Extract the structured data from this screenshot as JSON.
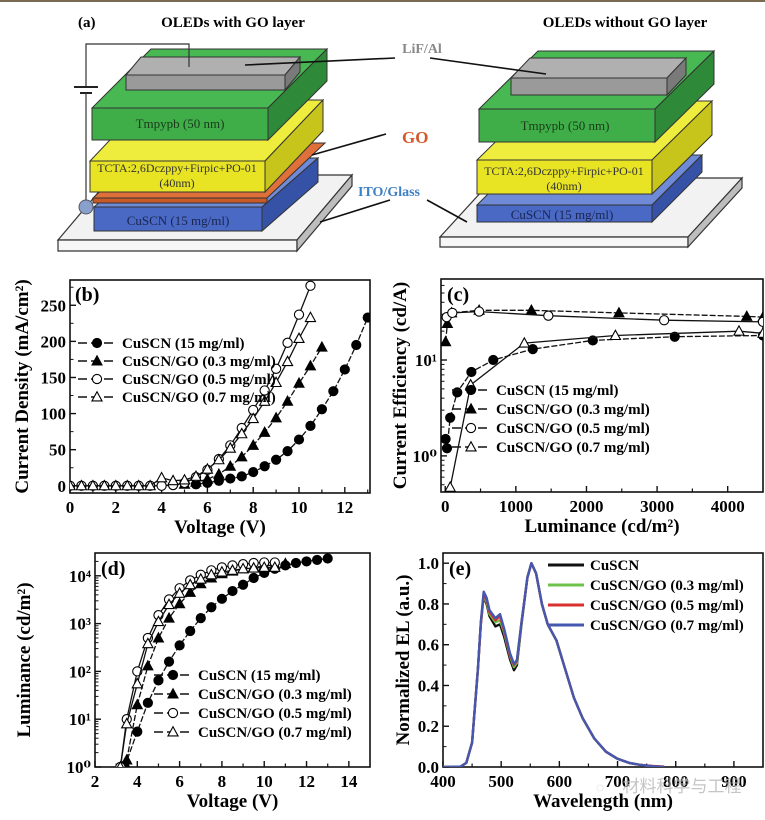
{
  "figure": {
    "panel_a": {
      "label": "(a)",
      "title_left": "OLEDs with GO layer",
      "title_right": "OLEDs without GO layer",
      "callouts": {
        "cathode": "LiF/Al",
        "go": "GO",
        "anode": "ITO/Glass"
      },
      "layers": {
        "etl": "Tmpypb (50 nm)",
        "eml_line1": "TCTA:2,6Dczppy+Firpic+PO-01",
        "eml_line2": "(40nm)",
        "htl": "CuSCN (15 mg/ml)"
      },
      "colors": {
        "cathode": "#9a9a9a",
        "etl": "#3fae49",
        "eml": "#e8e424",
        "go": "#e0703a",
        "htl": "#4a69c4",
        "glass": "#f2f2f2",
        "go_text": "#d2572a",
        "ito_text": "#3d7fc3"
      }
    },
    "watermark": "材料科学与工程"
  },
  "chart_data": [
    {
      "id": "b",
      "label": "(b)",
      "type": "scatter",
      "xlabel": "Voltage (V)",
      "ylabel": "Current Density (mA/cm²)",
      "xlim": [
        0,
        13.1
      ],
      "ylim": [
        -10,
        285
      ],
      "yscale": "linear",
      "xticks": [
        0,
        2,
        4,
        6,
        8,
        10,
        12
      ],
      "yticks": [
        0,
        50,
        100,
        150,
        200,
        250
      ],
      "legend_position": "left-middle",
      "series": [
        {
          "name": "CuSCN (15 mg/ml)",
          "marker": "circle-filled",
          "x": [
            5.5,
            6,
            6.5,
            7,
            7.5,
            8,
            8.5,
            9,
            9.5,
            10,
            10.5,
            11,
            11.5,
            12,
            12.5,
            13
          ],
          "y": [
            2,
            4,
            7,
            10,
            13,
            19,
            27,
            36,
            48,
            64,
            83,
            106,
            131,
            161,
            195,
            233
          ]
        },
        {
          "name": "CuSCN/GO (0.3 mg/ml)",
          "marker": "triangle-filled",
          "x": [
            5,
            5.5,
            6,
            6.5,
            7,
            7.5,
            8,
            8.5,
            9,
            9.5,
            10,
            10.5,
            11
          ],
          "y": [
            2,
            5,
            9,
            16,
            27,
            40,
            56,
            74,
            94,
            117,
            142,
            166,
            192
          ]
        },
        {
          "name": "CuSCN/GO (0.5 mg/ml)",
          "marker": "circle-open",
          "x": [
            0,
            0.5,
            1,
            1.5,
            2,
            2.5,
            3,
            3.5,
            4,
            4.5,
            5,
            5.5,
            6,
            6.5,
            7,
            7.5,
            8,
            8.5,
            9,
            9.5,
            10,
            10.5
          ],
          "y": [
            0,
            0,
            0,
            0,
            0,
            0,
            0,
            0,
            0,
            1,
            4,
            12,
            22,
            37,
            56,
            80,
            105,
            132,
            162,
            198,
            237,
            277
          ]
        },
        {
          "name": "CuSCN/GO (0.7 mg/ml)",
          "marker": "triangle-open",
          "x": [
            0,
            0.5,
            1,
            1.5,
            2,
            2.5,
            3,
            3.5,
            4,
            4.5,
            5,
            5.5,
            6,
            6.5,
            7,
            7.5,
            8,
            8.5,
            9,
            9.5,
            10,
            10.5
          ],
          "y": [
            0,
            0,
            0,
            0,
            0,
            0,
            0,
            0,
            11,
            7,
            8,
            13,
            23,
            36,
            52,
            72,
            93,
            117,
            143,
            172,
            204,
            233
          ]
        }
      ]
    },
    {
      "id": "c",
      "label": "(c)",
      "type": "scatter",
      "xlabel": "Luminance (cd/m²)",
      "ylabel": "Current Efficiency (cd/A)",
      "xlim": [
        -60,
        4500
      ],
      "ylim": [
        0.42,
        70
      ],
      "yscale": "log",
      "xticks": [
        0,
        1000,
        2000,
        3000,
        4000
      ],
      "yticks": [
        1,
        10
      ],
      "ytick_labels": [
        "10⁰",
        "10¹"
      ],
      "legend_position": "bottom-right",
      "series": [
        {
          "name": "CuSCN (15 mg/ml)",
          "marker": "circle-filled",
          "x": [
            5,
            25,
            70,
            170,
            370,
            680,
            1240,
            2090,
            3250,
            4500
          ],
          "y": [
            1.5,
            1.2,
            2.5,
            4.6,
            7.5,
            10,
            13,
            16,
            17.5,
            18
          ]
        },
        {
          "name": "CuSCN/GO (0.3 mg/ml)",
          "marker": "triangle-filled",
          "x": [
            5,
            30,
            90,
            480,
            1220,
            2460,
            4270,
            4500
          ],
          "y": [
            15.5,
            24,
            31,
            33,
            33,
            31,
            28.5,
            28
          ]
        },
        {
          "name": "CuSCN/GO (0.5 mg/ml)",
          "marker": "circle-open",
          "x": [
            20,
            100,
            480,
            1460,
            3100,
            4500
          ],
          "y": [
            28,
            31,
            32,
            29,
            26,
            25
          ]
        },
        {
          "name": "CuSCN/GO (0.7 mg/ml)",
          "marker": "triangle-open",
          "x": [
            70,
            360,
            1120,
            2410,
            4160,
            4500
          ],
          "y": [
            0.47,
            5.5,
            15,
            18,
            20,
            19
          ]
        }
      ]
    },
    {
      "id": "d",
      "label": "(d)",
      "type": "scatter",
      "xlabel": "Voltage (V)",
      "ylabel": "Luminance (cd/m²)",
      "xlim": [
        2,
        15
      ],
      "ylim": [
        1,
        30000
      ],
      "yscale": "log",
      "xticks": [
        2,
        4,
        6,
        8,
        10,
        12,
        14
      ],
      "yticks": [
        1,
        10,
        100,
        1000,
        10000
      ],
      "ytick_labels": [
        "10⁰",
        "10¹",
        "10²",
        "10³",
        "10⁴"
      ],
      "legend_position": "bottom-right",
      "series": [
        {
          "name": "CuSCN (15 mg/ml)",
          "marker": "circle-filled",
          "x": [
            3.4,
            4,
            4.5,
            5,
            5.5,
            6,
            6.5,
            7,
            7.5,
            8,
            8.5,
            9,
            9.5,
            10,
            10.5,
            11,
            11.5,
            12,
            12.5,
            13
          ],
          "y": [
            1,
            5.5,
            22,
            65,
            160,
            350,
            700,
            1300,
            2200,
            3300,
            4800,
            6500,
            9000,
            11500,
            14000,
            16500,
            18500,
            20000,
            21500,
            23000
          ]
        },
        {
          "name": "CuSCN/GO (0.3 mg/ml)",
          "marker": "triangle-filled",
          "x": [
            3.3,
            3.5,
            4,
            4.5,
            5,
            5.5,
            6,
            6.5,
            7,
            7.5,
            8,
            8.5,
            9,
            9.5,
            10,
            10.5,
            11
          ],
          "y": [
            1,
            1.4,
            20,
            130,
            500,
            1300,
            2600,
            4500,
            6800,
            9000,
            11000,
            12500,
            14000,
            15000,
            16000,
            17000,
            18000
          ]
        },
        {
          "name": "CuSCN/GO (0.5 mg/ml)",
          "marker": "circle-open",
          "x": [
            3.2,
            3.5,
            4,
            4.5,
            5,
            5.5,
            6,
            6.5,
            7,
            7.5,
            8,
            8.5,
            9,
            9.5,
            10,
            10.5
          ],
          "y": [
            1,
            10,
            100,
            500,
            1500,
            3200,
            5500,
            8000,
            10500,
            13000,
            15000,
            16500,
            17500,
            18500,
            19000,
            19000
          ]
        },
        {
          "name": "CuSCN/GO (0.7 mg/ml)",
          "marker": "triangle-open",
          "x": [
            3.2,
            3.5,
            4,
            4.5,
            5,
            5.5,
            6,
            6.5,
            7,
            7.5,
            8,
            8.5,
            9,
            9.5,
            10,
            10.5
          ],
          "y": [
            1,
            8,
            55,
            380,
            1100,
            2500,
            4300,
            6500,
            8500,
            10500,
            12000,
            13000,
            14000,
            14500,
            15000,
            15000
          ]
        }
      ]
    },
    {
      "id": "e",
      "label": "(e)",
      "type": "line",
      "xlabel": "Wavelength (nm)",
      "ylabel": "Normalized EL  (a.u.)",
      "xlim": [
        400,
        950
      ],
      "ylim": [
        0,
        1.05
      ],
      "yscale": "linear",
      "xticks": [
        400,
        500,
        600,
        700,
        800,
        900
      ],
      "yticks": [
        0.0,
        0.2,
        0.4,
        0.6,
        0.8,
        1.0
      ],
      "ytick_labels": [
        "0.0",
        "0.2",
        "0.4",
        "0.6",
        "0.8",
        "1.0"
      ],
      "legend_position": "top-right",
      "x": [
        400,
        430,
        440,
        450,
        460,
        465,
        470,
        475,
        480,
        490,
        498,
        505,
        515,
        522,
        527,
        535,
        545,
        552,
        560,
        570,
        580,
        595,
        610,
        625,
        640,
        660,
        680,
        700,
        720,
        740,
        760,
        780
      ],
      "series": [
        {
          "name": "CuSCN",
          "color": "#111111",
          "y": [
            0,
            0.002,
            0.02,
            0.12,
            0.48,
            0.7,
            0.84,
            0.8,
            0.74,
            0.69,
            0.7,
            0.64,
            0.53,
            0.475,
            0.5,
            0.7,
            0.93,
            1.0,
            0.95,
            0.8,
            0.7,
            0.62,
            0.48,
            0.34,
            0.24,
            0.14,
            0.075,
            0.04,
            0.02,
            0.01,
            0.004,
            0.0
          ]
        },
        {
          "name": "CuSCN/GO (0.3 mg/ml)",
          "color": "#6cc24a",
          "y": [
            0,
            0.002,
            0.02,
            0.12,
            0.48,
            0.7,
            0.84,
            0.81,
            0.75,
            0.71,
            0.72,
            0.66,
            0.545,
            0.49,
            0.51,
            0.7,
            0.93,
            1.0,
            0.95,
            0.8,
            0.7,
            0.62,
            0.48,
            0.34,
            0.24,
            0.14,
            0.075,
            0.04,
            0.02,
            0.01,
            0.004,
            0.0
          ]
        },
        {
          "name": "CuSCN/GO (0.5 mg/ml)",
          "color": "#d9302f",
          "y": [
            0,
            0.002,
            0.02,
            0.12,
            0.48,
            0.7,
            0.85,
            0.82,
            0.76,
            0.72,
            0.74,
            0.67,
            0.55,
            0.5,
            0.52,
            0.71,
            0.93,
            1.0,
            0.95,
            0.8,
            0.7,
            0.62,
            0.48,
            0.34,
            0.24,
            0.14,
            0.075,
            0.04,
            0.02,
            0.01,
            0.005,
            0.002
          ]
        },
        {
          "name": "CuSCN/GO (0.7 mg/ml)",
          "color": "#4657b0",
          "y": [
            0,
            0.002,
            0.02,
            0.12,
            0.48,
            0.71,
            0.86,
            0.83,
            0.77,
            0.73,
            0.75,
            0.68,
            0.56,
            0.505,
            0.525,
            0.71,
            0.93,
            1.0,
            0.95,
            0.8,
            0.7,
            0.62,
            0.48,
            0.34,
            0.24,
            0.14,
            0.075,
            0.04,
            0.02,
            0.01,
            0.004,
            0.0
          ]
        }
      ]
    }
  ]
}
